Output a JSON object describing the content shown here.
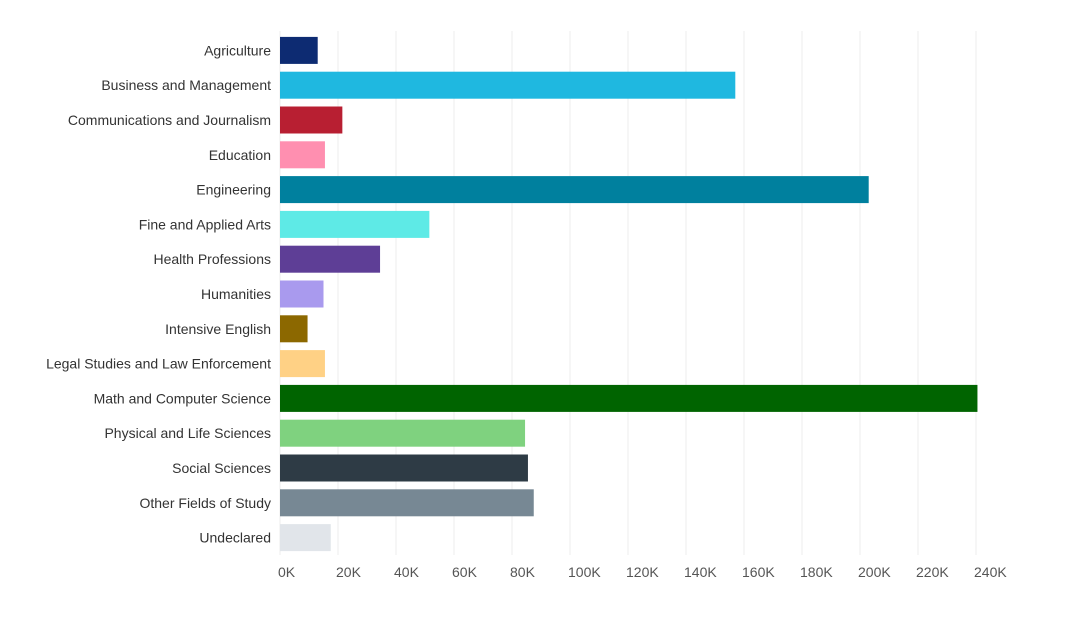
{
  "chart_data": {
    "type": "bar",
    "orientation": "horizontal",
    "title": "",
    "xlabel": "",
    "ylabel": "",
    "xlim": [
      0,
      250000
    ],
    "grid": true,
    "categories": [
      "Agriculture",
      "Business and Management",
      "Communications and Journalism",
      "Education",
      "Engineering",
      "Fine and Applied Arts",
      "Health Professions",
      "Humanities",
      "Intensive English",
      "Legal Studies and Law Enforcement",
      "Math and Computer Science",
      "Physical and Life Sciences",
      "Social Sciences",
      "Other Fields of Study",
      "Undeclared"
    ],
    "values": [
      13000,
      157000,
      21500,
      15500,
      203000,
      51500,
      34500,
      15000,
      9500,
      15500,
      240500,
      84500,
      85500,
      87500,
      17500
    ],
    "colors": [
      "#0d2b72",
      "#1fb8e0",
      "#b81f32",
      "#ff8fb0",
      "#00809e",
      "#5eeae6",
      "#5e3e96",
      "#a99aee",
      "#8c6800",
      "#ffd185",
      "#006400",
      "#7fd27f",
      "#2e3b45",
      "#778894",
      "#e1e5ea"
    ],
    "x_ticks": [
      {
        "value": 0,
        "label": "0K"
      },
      {
        "value": 20000,
        "label": "20K"
      },
      {
        "value": 40000,
        "label": "40K"
      },
      {
        "value": 60000,
        "label": "60K"
      },
      {
        "value": 80000,
        "label": "80K"
      },
      {
        "value": 100000,
        "label": "100K"
      },
      {
        "value": 120000,
        "label": "120K"
      },
      {
        "value": 140000,
        "label": "140K"
      },
      {
        "value": 160000,
        "label": "160K"
      },
      {
        "value": 180000,
        "label": "180K"
      },
      {
        "value": 200000,
        "label": "200K"
      },
      {
        "value": 220000,
        "label": "220K"
      },
      {
        "value": 240000,
        "label": "240K"
      }
    ]
  }
}
